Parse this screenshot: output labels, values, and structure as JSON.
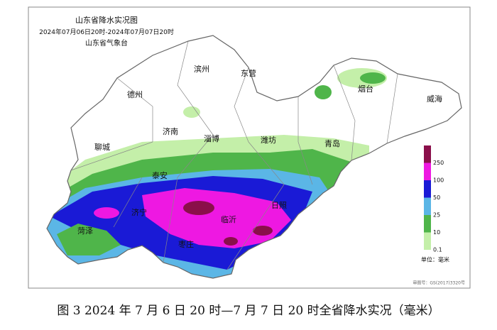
{
  "title": "山东省降水实况图",
  "period": "2024年07月06日20时-2024年07月07日20时",
  "issuer": "山东省气象台",
  "cities": [
    "滨州",
    "东营",
    "烟台",
    "德州",
    "威海",
    "济南",
    "淄博",
    "潍坊",
    "青岛",
    "聊城",
    "泰安",
    "日照",
    "济宁",
    "临沂",
    "菏泽",
    "枣庄"
  ],
  "legend": {
    "ticks": [
      0.1,
      10,
      25,
      50,
      100,
      250
    ],
    "colors": [
      "#c4efa9",
      "#4fb54a",
      "#5bb6e6",
      "#1a1ad6",
      "#ee18e2",
      "#8a0f4a"
    ],
    "unit": "单位：毫米"
  },
  "approval": "审图号：GS(2017)3320号",
  "caption": "图 3 2024 年 7 月 6 日 20 时—7 月 7 日 20 时全省降水实况（毫米）"
}
